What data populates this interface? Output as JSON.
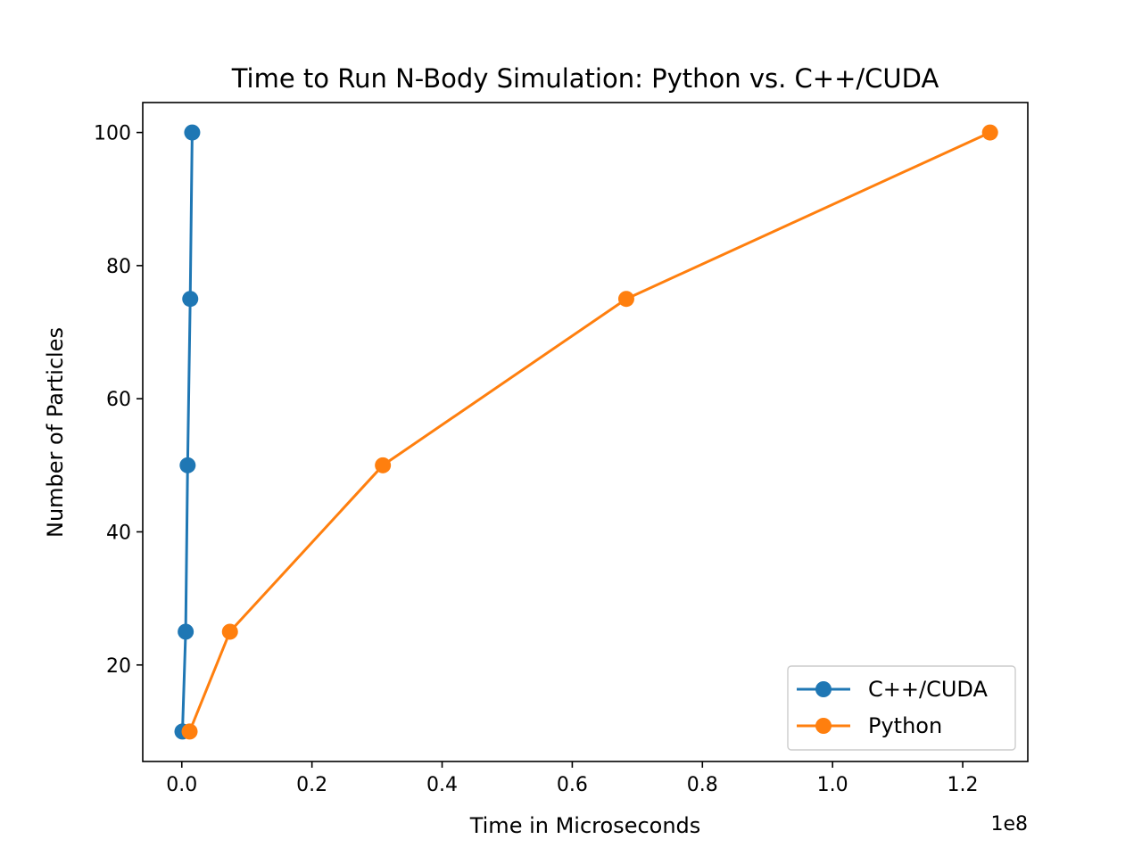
{
  "chart_data": {
    "type": "line",
    "title": "Time to Run N-Body Simulation: Python vs. C++/CUDA",
    "xlabel": "Time in Microseconds",
    "ylabel": "Number of Particles",
    "x_offset_label": "1e8",
    "xlim": [
      -0.06,
      1.3
    ],
    "ylim": [
      5.5,
      104.5
    ],
    "xticks": [
      0.0,
      0.2,
      0.4,
      0.6,
      0.8,
      1.0,
      1.2
    ],
    "xtick_labels": [
      "0.0",
      "0.2",
      "0.4",
      "0.6",
      "0.8",
      "1.0",
      "1.2"
    ],
    "yticks": [
      20,
      40,
      60,
      80,
      100
    ],
    "ytick_labels": [
      "20",
      "40",
      "60",
      "80",
      "100"
    ],
    "grid": false,
    "legend_position": "lower-right",
    "series": [
      {
        "name": "C++/CUDA",
        "color": "#1f77b4",
        "marker": "circle",
        "x": [
          0.001,
          0.006,
          0.009,
          0.013,
          0.016
        ],
        "y": [
          10,
          25,
          50,
          75,
          100
        ]
      },
      {
        "name": "Python",
        "color": "#ff7f0e",
        "marker": "circle",
        "x": [
          0.012,
          0.074,
          0.309,
          0.683,
          1.242
        ],
        "y": [
          10,
          25,
          50,
          75,
          100
        ]
      }
    ]
  }
}
